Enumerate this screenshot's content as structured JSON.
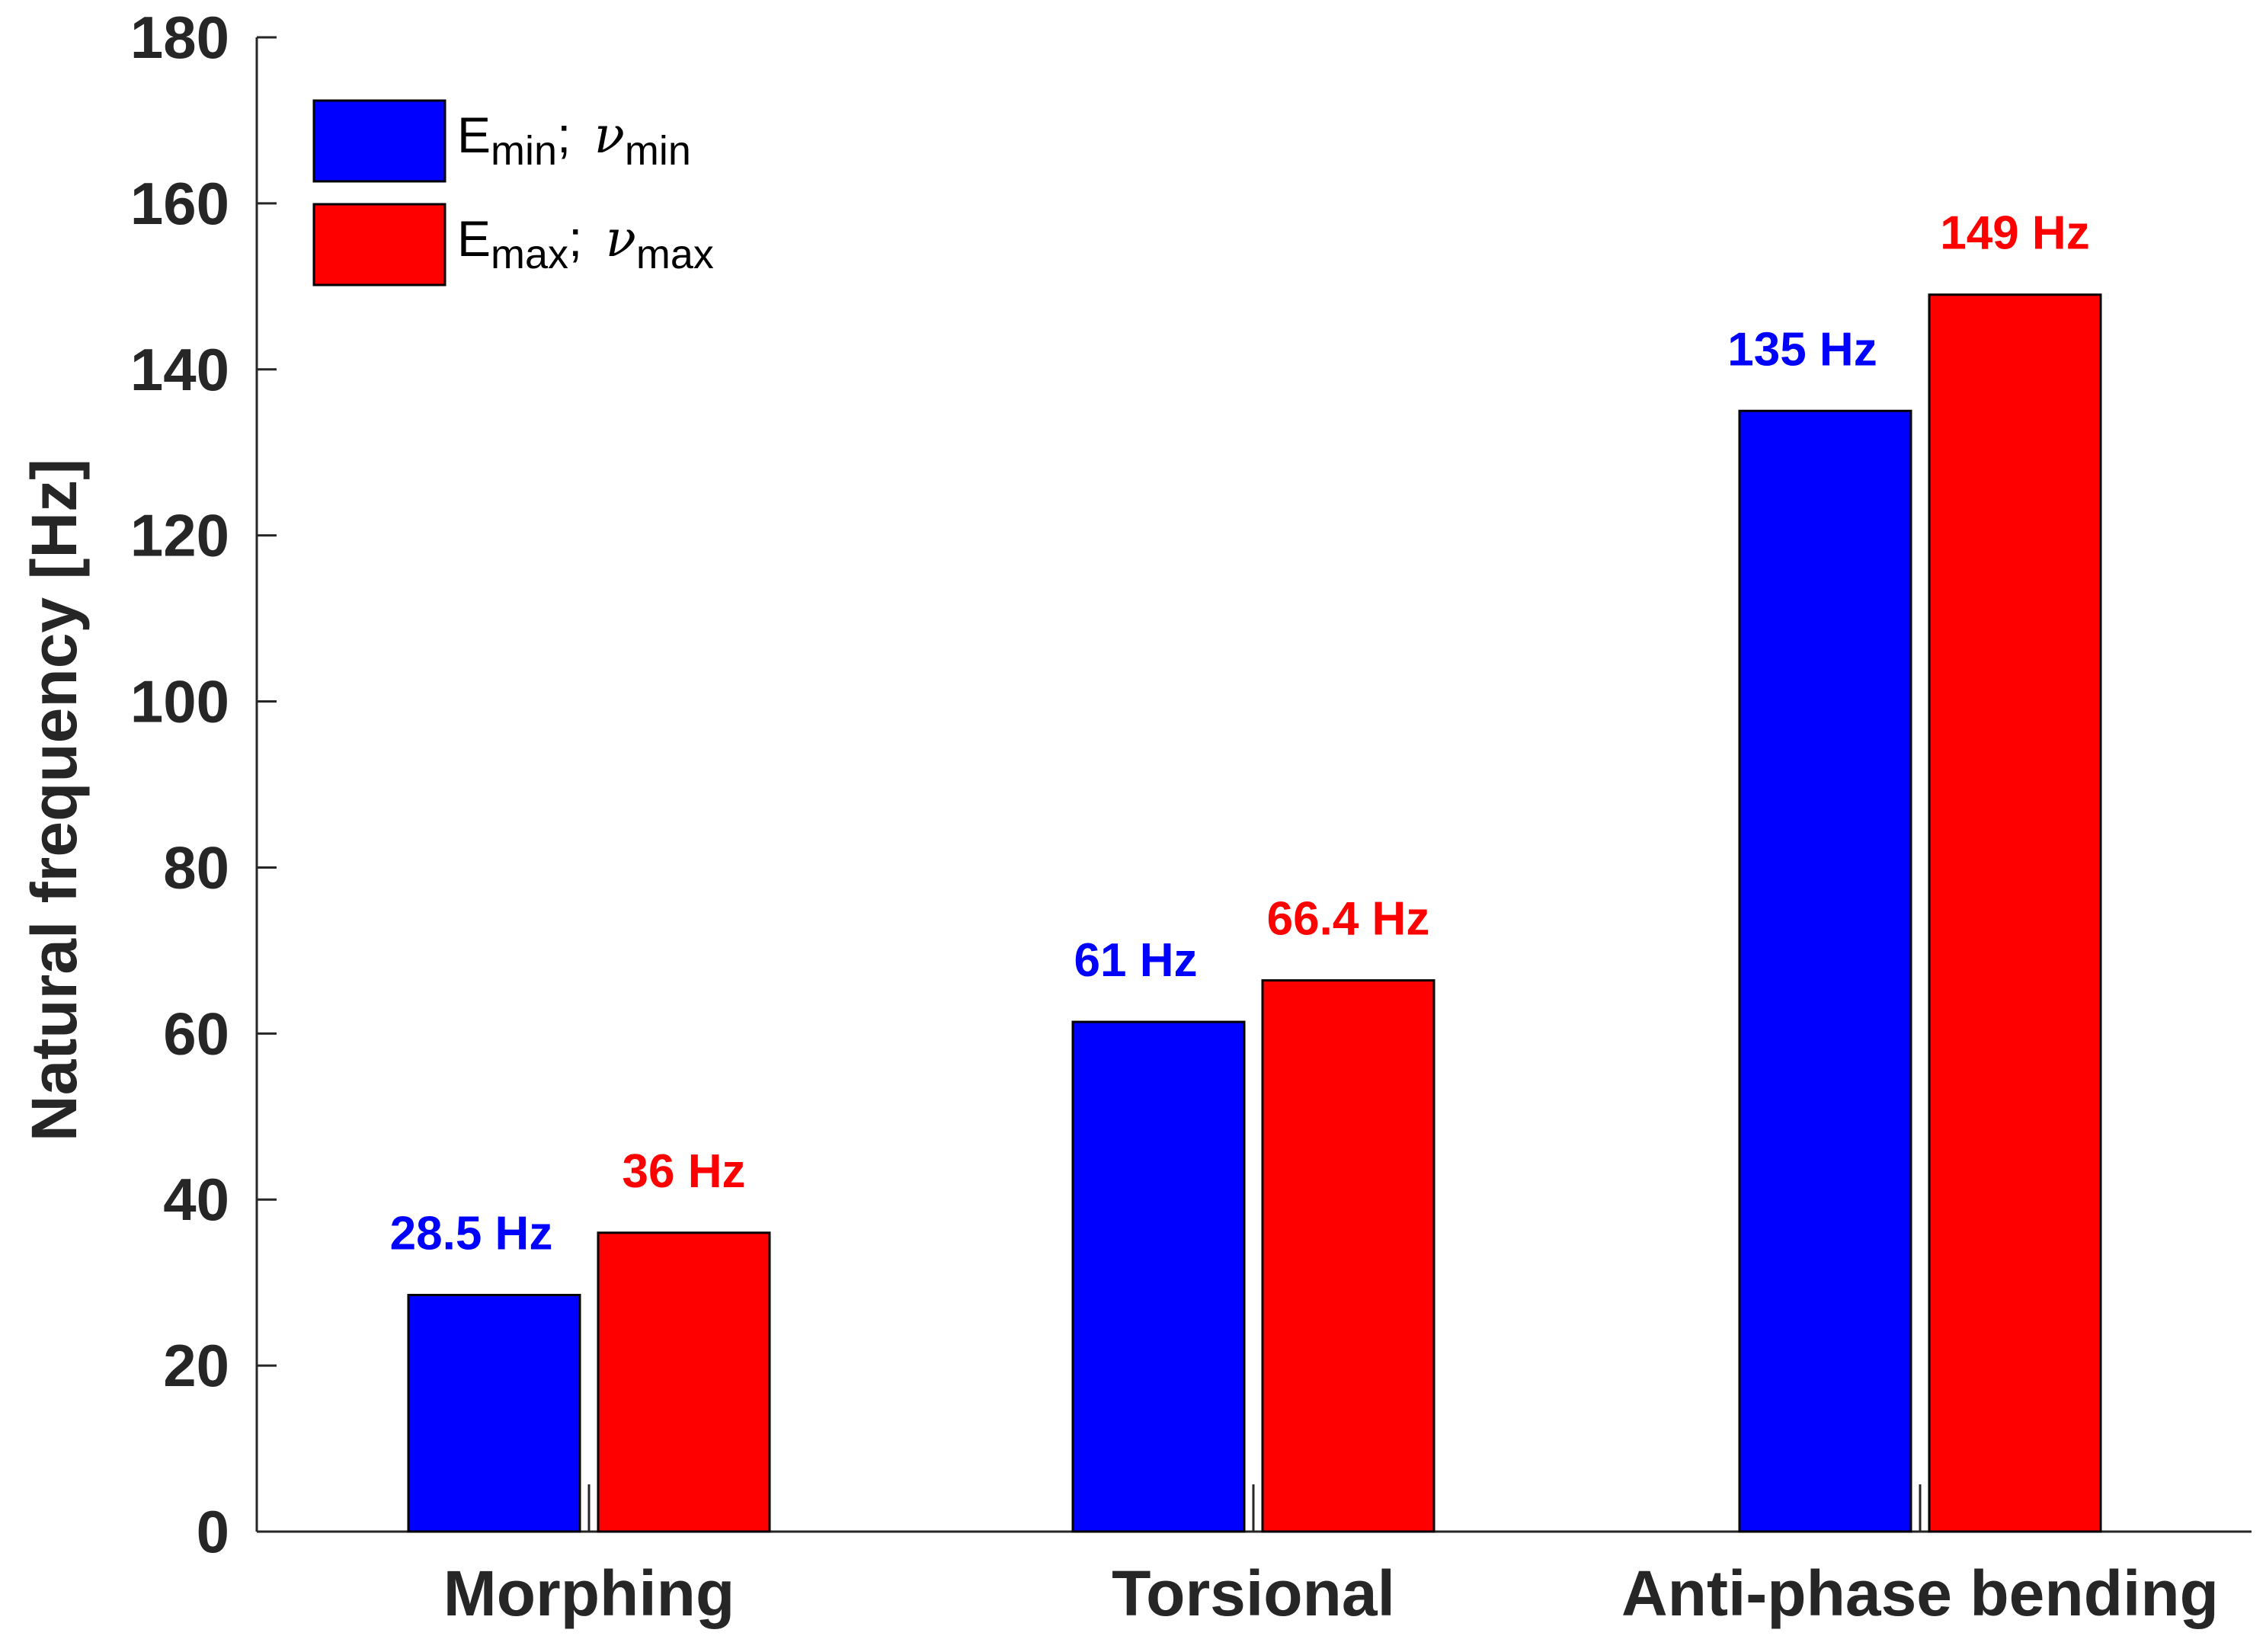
{
  "chart_data": {
    "type": "bar",
    "categories": [
      "Morphing",
      "Torsional",
      "Anti-phase bending"
    ],
    "series": [
      {
        "name": "E_min; ν_min",
        "legend_main": "E",
        "legend_sub1": "min",
        "legend_sep": "; ",
        "legend_nu": "ν",
        "legend_sub2": "min",
        "color": "#0000ff",
        "values": [
          28.5,
          61.4,
          135
        ],
        "labels": [
          "28.5 Hz",
          "61 Hz",
          "135 Hz"
        ]
      },
      {
        "name": "E_max; ν_max",
        "legend_main": "E",
        "legend_sub1": "max",
        "legend_sep": "; ",
        "legend_nu": "ν",
        "legend_sub2": "max",
        "color": "#ff0000",
        "values": [
          36,
          66.4,
          149
        ],
        "labels": [
          "36 Hz",
          "66.4 Hz",
          "149 Hz"
        ]
      }
    ],
    "ylabel": "Natural frequency [Hz]",
    "xlabel": "",
    "ylim": [
      0,
      180
    ],
    "yticks": [
      0,
      20,
      40,
      60,
      80,
      100,
      120,
      140,
      160,
      180
    ],
    "grid": false,
    "legend_position": "top-left"
  }
}
